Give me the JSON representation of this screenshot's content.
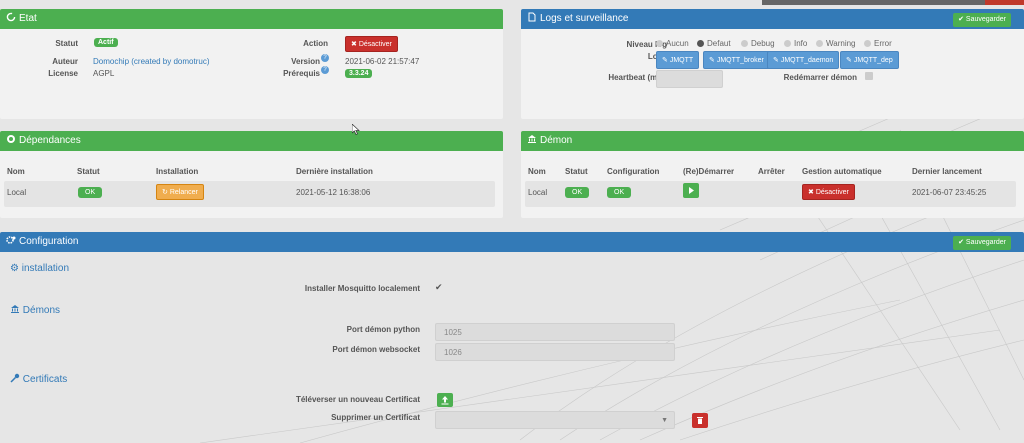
{
  "etat": {
    "title": "Etat",
    "statut_label": "Statut",
    "statut_value": "Actif",
    "action_label": "Action",
    "action_button": "Désactiver",
    "auteur_label": "Auteur",
    "auteur_value": "Domochip (created by domotruc)",
    "license_label": "License",
    "license_value": "AGPL",
    "version_label": "Version",
    "version_value": "2021-06-02 21:57:47",
    "prerequis_label": "Prérequis",
    "prerequis_value": "3.3.24"
  },
  "logs": {
    "title": "Logs et surveillance",
    "save_button": "Sauvegarder",
    "niveau_label": "Niveau log",
    "levels": [
      "Aucun",
      "Defaut",
      "Debug",
      "Info",
      "Warning",
      "Error"
    ],
    "selected_level": "Defaut",
    "logs_label": "Logs",
    "log_buttons": [
      "JMQTT",
      "JMQTT_broker",
      "JMQTT_daemon",
      "JMQTT_dep"
    ],
    "heartbeat_label": "Heartbeat (min)",
    "redemarrer_label": "Redémarrer démon"
  },
  "dependances": {
    "title": "Dépendances",
    "headers": [
      "Nom",
      "Statut",
      "Installation",
      "Dernière installation"
    ],
    "row": {
      "nom": "Local",
      "statut": "OK",
      "installation_button": "Relancer",
      "derniere": "2021-05-12 16:38:06"
    }
  },
  "demon": {
    "title": "Démon",
    "headers": [
      "Nom",
      "Statut",
      "Configuration",
      "(Re)Démarrer",
      "Arrêter",
      "Gestion automatique",
      "Dernier lancement"
    ],
    "row": {
      "nom": "Local",
      "statut": "OK",
      "configuration": "OK",
      "gestion_button": "Désactiver",
      "dernier": "2021-06-07 23:45:25"
    }
  },
  "configuration": {
    "title": "Configuration",
    "save_button": "Sauvegarder",
    "installation_section": "installation",
    "mosquitto_label": "Installer Mosquitto localement",
    "demons_section": "Démons",
    "port_python_label": "Port démon python",
    "port_python_value": "1025",
    "port_websocket_label": "Port démon websocket",
    "port_websocket_value": "1026",
    "certificats_section": "Certificats",
    "upload_label": "Téléverser un nouveau Certificat",
    "delete_label": "Supprimer un Certificat"
  },
  "colors": {
    "green": "#4caf50",
    "blue": "#337ab7",
    "red": "#c9302c",
    "orange": "#f0ad4e"
  }
}
